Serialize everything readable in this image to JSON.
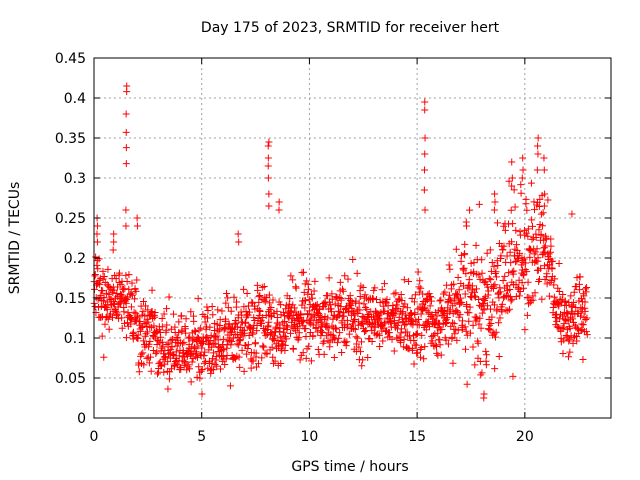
{
  "chart_data": {
    "type": "scatter",
    "title": "Day 175 of 2023, SRMTID for receiver hert",
    "xlabel": "GPS time / hours",
    "ylabel": "SRMTID / TECUs",
    "xlim": [
      0,
      24
    ],
    "ylim": [
      0,
      0.45
    ],
    "xticks": [
      0,
      5,
      10,
      15,
      20
    ],
    "xtick_labels": [
      "0",
      "5",
      "10",
      "15",
      "20"
    ],
    "yticks": [
      0,
      0.05,
      0.1,
      0.15,
      0.2,
      0.25,
      0.3,
      0.35,
      0.4,
      0.45
    ],
    "ytick_labels": [
      "0",
      "0.05",
      "0.1",
      "0.15",
      "0.2",
      "0.25",
      "0.3",
      "0.35",
      "0.4",
      "0.45"
    ],
    "grid": true,
    "marker": "+",
    "series_color": "#ff0000",
    "trend": {
      "x": [
        0,
        0.5,
        1.0,
        1.5,
        2.0,
        2.5,
        3.0,
        3.5,
        4.0,
        4.5,
        5.0,
        5.5,
        6.0,
        6.5,
        7.0,
        7.5,
        8.0,
        8.5,
        9.0,
        9.5,
        10.0,
        10.5,
        11.0,
        11.5,
        12.0,
        12.5,
        13.0,
        13.5,
        14.0,
        14.5,
        15.0,
        15.5,
        16.0,
        16.5,
        17.0,
        17.5,
        18.0,
        18.5,
        19.0,
        19.5,
        20.0,
        20.5,
        21.0,
        21.5,
        22.0,
        22.5,
        22.9
      ],
      "y": [
        0.17,
        0.14,
        0.15,
        0.15,
        0.12,
        0.1,
        0.09,
        0.085,
        0.085,
        0.085,
        0.085,
        0.09,
        0.095,
        0.1,
        0.11,
        0.11,
        0.12,
        0.11,
        0.115,
        0.12,
        0.13,
        0.12,
        0.12,
        0.12,
        0.13,
        0.12,
        0.125,
        0.13,
        0.12,
        0.12,
        0.12,
        0.13,
        0.11,
        0.13,
        0.13,
        0.15,
        0.14,
        0.15,
        0.17,
        0.19,
        0.2,
        0.21,
        0.2,
        0.13,
        0.12,
        0.13,
        0.13
      ]
    },
    "spikes": [
      {
        "x": 0.15,
        "values": [
          0.24,
          0.25,
          0.23,
          0.22
        ]
      },
      {
        "x": 0.9,
        "values": [
          0.22,
          0.23,
          0.21
        ]
      },
      {
        "x": 1.5,
        "values": [
          0.415,
          0.408,
          0.38,
          0.357,
          0.338,
          0.318,
          0.26,
          0.24
        ]
      },
      {
        "x": 2.0,
        "values": [
          0.25,
          0.24
        ]
      },
      {
        "x": 6.7,
        "values": [
          0.23,
          0.22
        ]
      },
      {
        "x": 8.1,
        "values": [
          0.345,
          0.34,
          0.325,
          0.315,
          0.3,
          0.28,
          0.265
        ]
      },
      {
        "x": 8.6,
        "values": [
          0.27,
          0.26
        ]
      },
      {
        "x": 15.35,
        "values": [
          0.395,
          0.385,
          0.35,
          0.33,
          0.31,
          0.285,
          0.26
        ]
      },
      {
        "x": 17.3,
        "values": [
          0.245,
          0.24
        ]
      },
      {
        "x": 18.6,
        "values": [
          0.28,
          0.27,
          0.26
        ]
      },
      {
        "x": 19.4,
        "values": [
          0.32,
          0.3,
          0.29
        ]
      },
      {
        "x": 19.9,
        "values": [
          0.325,
          0.31,
          0.3
        ]
      },
      {
        "x": 20.6,
        "values": [
          0.35,
          0.34,
          0.33,
          0.31
        ]
      },
      {
        "x": 20.9,
        "values": [
          0.325,
          0.31,
          0.28,
          0.265
        ]
      },
      {
        "x": 22.2,
        "values": [
          0.255
        ]
      },
      {
        "x": 18.1,
        "values": [
          0.025,
          0.03
        ]
      }
    ]
  }
}
